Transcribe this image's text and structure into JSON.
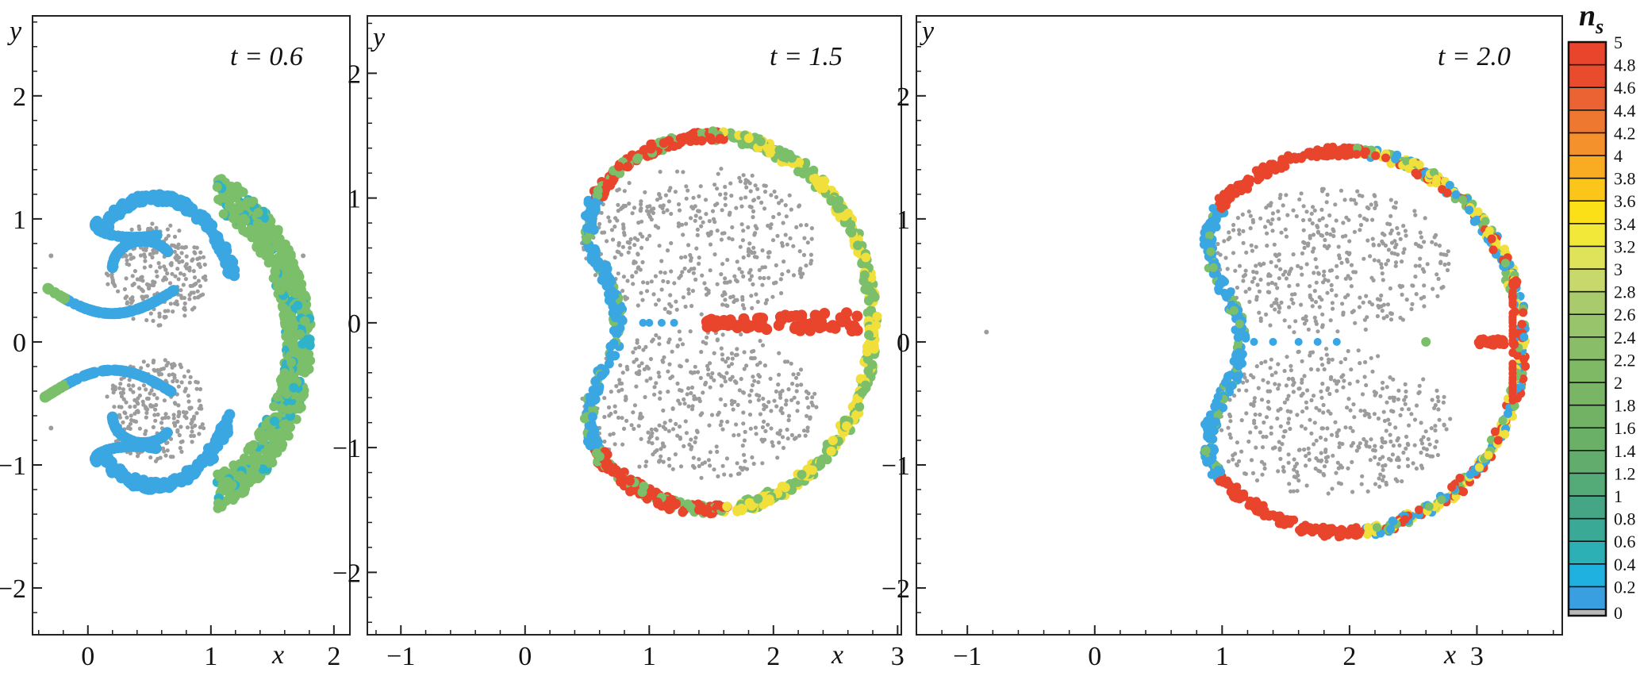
{
  "chart_data": [
    {
      "type": "scatter",
      "title": "t = 0.6",
      "xlabel": "x",
      "ylabel": "y",
      "xlim": [
        -0.45,
        2.13
      ],
      "ylim": [
        -2.38,
        2.65
      ],
      "xticks": [
        0,
        1,
        2
      ],
      "xtick_labels": [
        "0",
        "1",
        "2"
      ],
      "yticks": [
        -2,
        -1,
        0,
        1,
        2
      ],
      "ytick_labels": [
        "−2",
        "−1",
        "0",
        "1",
        "2"
      ],
      "grid": false,
      "color_by": "n_s"
    },
    {
      "type": "scatter",
      "title": "t = 1.5",
      "xlabel": "x",
      "ylabel": "y",
      "xlim": [
        -1.27,
        3.03
      ],
      "ylim": [
        -2.5,
        2.46
      ],
      "xticks": [
        -1,
        0,
        1,
        2,
        3
      ],
      "xtick_labels": [
        "−1",
        "0",
        "1",
        "2",
        "3"
      ],
      "yticks": [
        -2,
        -1,
        0,
        1,
        2
      ],
      "ytick_labels": [
        "−2",
        "−1",
        "0",
        "1",
        "2"
      ],
      "grid": false,
      "color_by": "n_s"
    },
    {
      "type": "scatter",
      "title": "t = 2.0",
      "xlabel": "x",
      "ylabel": "y",
      "xlim": [
        -1.4,
        3.67
      ],
      "ylim": [
        -2.38,
        2.65
      ],
      "xticks": [
        -1,
        0,
        1,
        2,
        3
      ],
      "xtick_labels": [
        "−1",
        "0",
        "1",
        "2",
        "3"
      ],
      "yticks": [
        -2,
        -1,
        0,
        1,
        2
      ],
      "ytick_labels": [
        "−2",
        "−1",
        "0",
        "1",
        "2"
      ],
      "grid": false,
      "color_by": "n_s"
    }
  ],
  "colorbar": {
    "label": "n_s",
    "label_main": "n",
    "label_sub": "s",
    "range": [
      0,
      5
    ],
    "ticks": [
      "0",
      "0.2",
      "0.4",
      "0.6",
      "0.8",
      "1",
      "1.2",
      "1.4",
      "1.6",
      "1.8",
      "2",
      "2.2",
      "2.4",
      "2.6",
      "2.8",
      "3",
      "3.2",
      "3.4",
      "3.6",
      "3.8",
      "4",
      "4.2",
      "4.4",
      "4.6",
      "4.8",
      "5"
    ],
    "colors": [
      "#b9b9b9",
      "#3a9fe0",
      "#1fb2e0",
      "#2cb0b5",
      "#3aa995",
      "#45a686",
      "#55ab78",
      "#62ad6e",
      "#6bb067",
      "#72b265",
      "#78b565",
      "#80b966",
      "#8abd68",
      "#98c46b",
      "#aacb6c",
      "#c8d86a",
      "#dfe35a",
      "#f2e83a",
      "#fbe018",
      "#fbc51a",
      "#f9ab22",
      "#f4912c",
      "#ef7831",
      "#eb6332",
      "#e94c2d",
      "#e8452c"
    ]
  },
  "point_colors": {
    "interior": "#9c9c9c",
    "blue": "#3aa6e2",
    "teal": "#2fb3c8",
    "green": "#7bbf6a",
    "yellow": "#f1df3c",
    "red": "#e8452c"
  }
}
